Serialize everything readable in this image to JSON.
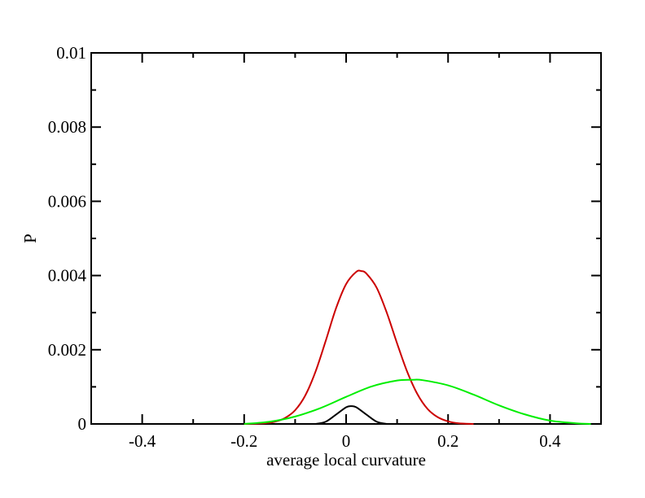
{
  "chart_data": {
    "type": "line",
    "title": "",
    "xlabel": "average local curvature",
    "ylabel": "P",
    "xlim": [
      -0.5,
      0.5
    ],
    "ylim": [
      0,
      0.01
    ],
    "x_ticks": [
      -0.4,
      -0.2,
      0,
      0.2,
      0.4
    ],
    "x_tick_labels": [
      "-0.4",
      "-0.2",
      "0",
      "0.2",
      "0.4"
    ],
    "y_ticks": [
      0,
      0.002,
      0.004,
      0.006,
      0.008,
      0.01
    ],
    "y_tick_labels": [
      "0",
      "0.002",
      "0.004",
      "0.006",
      "0.008",
      "0.01"
    ],
    "grid": false,
    "legend": "none",
    "series": [
      {
        "color": "#cc0000",
        "x": [
          -0.2,
          -0.16,
          -0.14,
          -0.12,
          -0.1,
          -0.08,
          -0.06,
          -0.04,
          -0.02,
          0.0,
          0.02,
          0.03,
          0.04,
          0.06,
          0.08,
          0.1,
          0.12,
          0.14,
          0.16,
          0.18,
          0.2,
          0.22,
          0.25
        ],
        "y": [
          0.0,
          2e-05,
          6e-05,
          0.00016,
          0.00037,
          0.00077,
          0.00141,
          0.00224,
          0.00311,
          0.00377,
          0.0041,
          0.00412,
          0.00405,
          0.00367,
          0.00299,
          0.00217,
          0.0014,
          0.0008,
          0.0004,
          0.00018,
          7e-05,
          2e-05,
          0.0
        ]
      },
      {
        "color": "#00ee00",
        "x": [
          -0.2,
          -0.15,
          -0.1,
          -0.05,
          0.0,
          0.05,
          0.1,
          0.13,
          0.15,
          0.2,
          0.25,
          0.3,
          0.35,
          0.4,
          0.45,
          0.48
        ],
        "y": [
          0.0,
          6e-05,
          0.0002,
          0.00043,
          0.00073,
          0.00101,
          0.00117,
          0.00119,
          0.00118,
          0.00104,
          0.00079,
          0.0005,
          0.00026,
          9e-05,
          2e-05,
          0.0
        ]
      },
      {
        "color": "#000000",
        "x": [
          -0.06,
          -0.04,
          -0.02,
          0.0,
          0.01,
          0.02,
          0.04,
          0.06,
          0.08
        ],
        "y": [
          0.0,
          6e-05,
          0.00025,
          0.00045,
          0.00048,
          0.00045,
          0.00025,
          6e-05,
          0.0
        ]
      }
    ]
  }
}
